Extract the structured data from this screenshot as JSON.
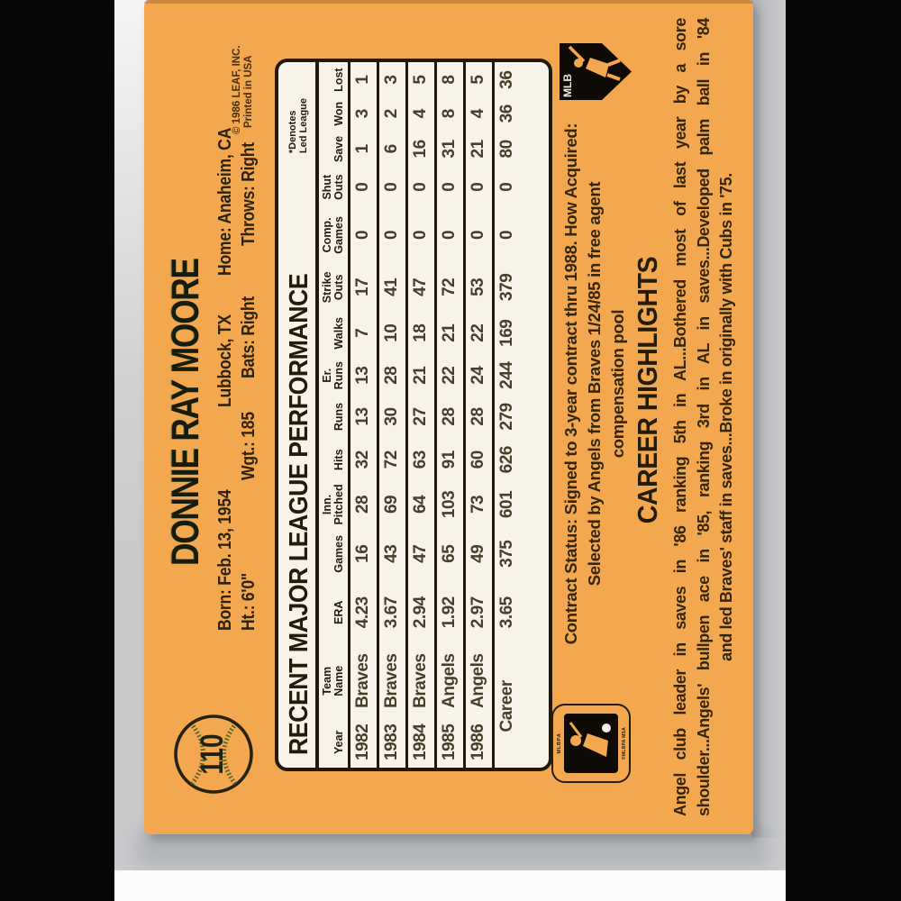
{
  "scene": {
    "background_color": "#c9cacc",
    "side_bar_color": "#060606",
    "bottom_strip_color": "#fbfbfa"
  },
  "card": {
    "colors": {
      "card_background": "#f3a74f",
      "panel_background": "#f7f3e8",
      "ink": "#2c220e"
    },
    "card_number": "110",
    "player_name": "DONNIE RAY MOORE",
    "bio": {
      "line1": [
        "Born: Feb. 13, 1954",
        "Lubbock, TX",
        "Home: Anaheim, CA"
      ],
      "line2": [
        "Ht.: 6'0\"",
        "Wgt.: 185",
        "Bats: Right",
        "Throws: Right"
      ]
    },
    "copyright": {
      "line1": "© 1986 LEAF, INC.",
      "line2": "Printed in USA"
    },
    "stats": {
      "title": "RECENT MAJOR LEAGUE PERFORMANCE",
      "denotes_line1": "*Denotes",
      "denotes_line2": "Led League",
      "columns": [
        [
          "",
          "Year"
        ],
        [
          "Team",
          "Name"
        ],
        [
          "",
          "ERA"
        ],
        [
          "",
          "Games"
        ],
        [
          "Inn.",
          "Pitched"
        ],
        [
          "",
          "Hits"
        ],
        [
          "",
          "Runs"
        ],
        [
          "Er.",
          "Runs"
        ],
        [
          "",
          "Walks"
        ],
        [
          "Strike",
          "Outs"
        ],
        [
          "Comp.",
          "Games"
        ],
        [
          "Shut",
          "Outs"
        ],
        [
          "",
          "Save"
        ],
        [
          "",
          "Won"
        ],
        [
          "",
          "Lost"
        ]
      ],
      "rows": [
        [
          "1982",
          "Braves",
          "4.23",
          "16",
          "28",
          "32",
          "13",
          "13",
          "7",
          "17",
          "0",
          "0",
          "1",
          "3",
          "1"
        ],
        [
          "1983",
          "Braves",
          "3.67",
          "43",
          "69",
          "72",
          "30",
          "28",
          "10",
          "41",
          "0",
          "0",
          "6",
          "2",
          "3"
        ],
        [
          "1984",
          "Braves",
          "2.94",
          "47",
          "64",
          "63",
          "27",
          "21",
          "18",
          "47",
          "0",
          "0",
          "16",
          "4",
          "5"
        ],
        [
          "1985",
          "Angels",
          "1.92",
          "65",
          "103",
          "91",
          "28",
          "22",
          "21",
          "72",
          "0",
          "0",
          "31",
          "8",
          "8"
        ],
        [
          "1986",
          "Angels",
          "2.97",
          "49",
          "73",
          "60",
          "28",
          "24",
          "22",
          "53",
          "0",
          "0",
          "21",
          "4",
          "5"
        ],
        [
          "Career",
          "",
          "3.65",
          "375",
          "601",
          "626",
          "279",
          "244",
          "169",
          "379",
          "0",
          "0",
          "80",
          "36",
          "36"
        ]
      ],
      "column_widths_pct": [
        7.2,
        10.2,
        9.2,
        7.4,
        6.6,
        6.1,
        6.1,
        5.6,
        6.4,
        6.6,
        8.2,
        5.4,
        5.4,
        4.6,
        5.0
      ]
    },
    "contract": {
      "line1": "Contract Status: Signed to 3-year contract thru 1988. How Acquired:",
      "line2": "Selected by Angels from Braves 1/24/85 in free agent",
      "line3": "compensation pool"
    },
    "career": {
      "heading": "CAREER HIGHLIGHTS",
      "line1": "Angel club leader in saves in '86 ranking 5th in AL...Bothered most of last year by a sore",
      "line2": "shoulder...Angels' bullpen ace in '85, ranking 3rd in AL in saves...Developed palm ball in '84",
      "line3": "and led Braves' staff in saves...Broke in originally with Cubs in '75."
    },
    "logos": {
      "mlb": "MLB",
      "mlbpa": "MLBPA",
      "mlbpa_small": "©MLBPA MSA"
    }
  }
}
